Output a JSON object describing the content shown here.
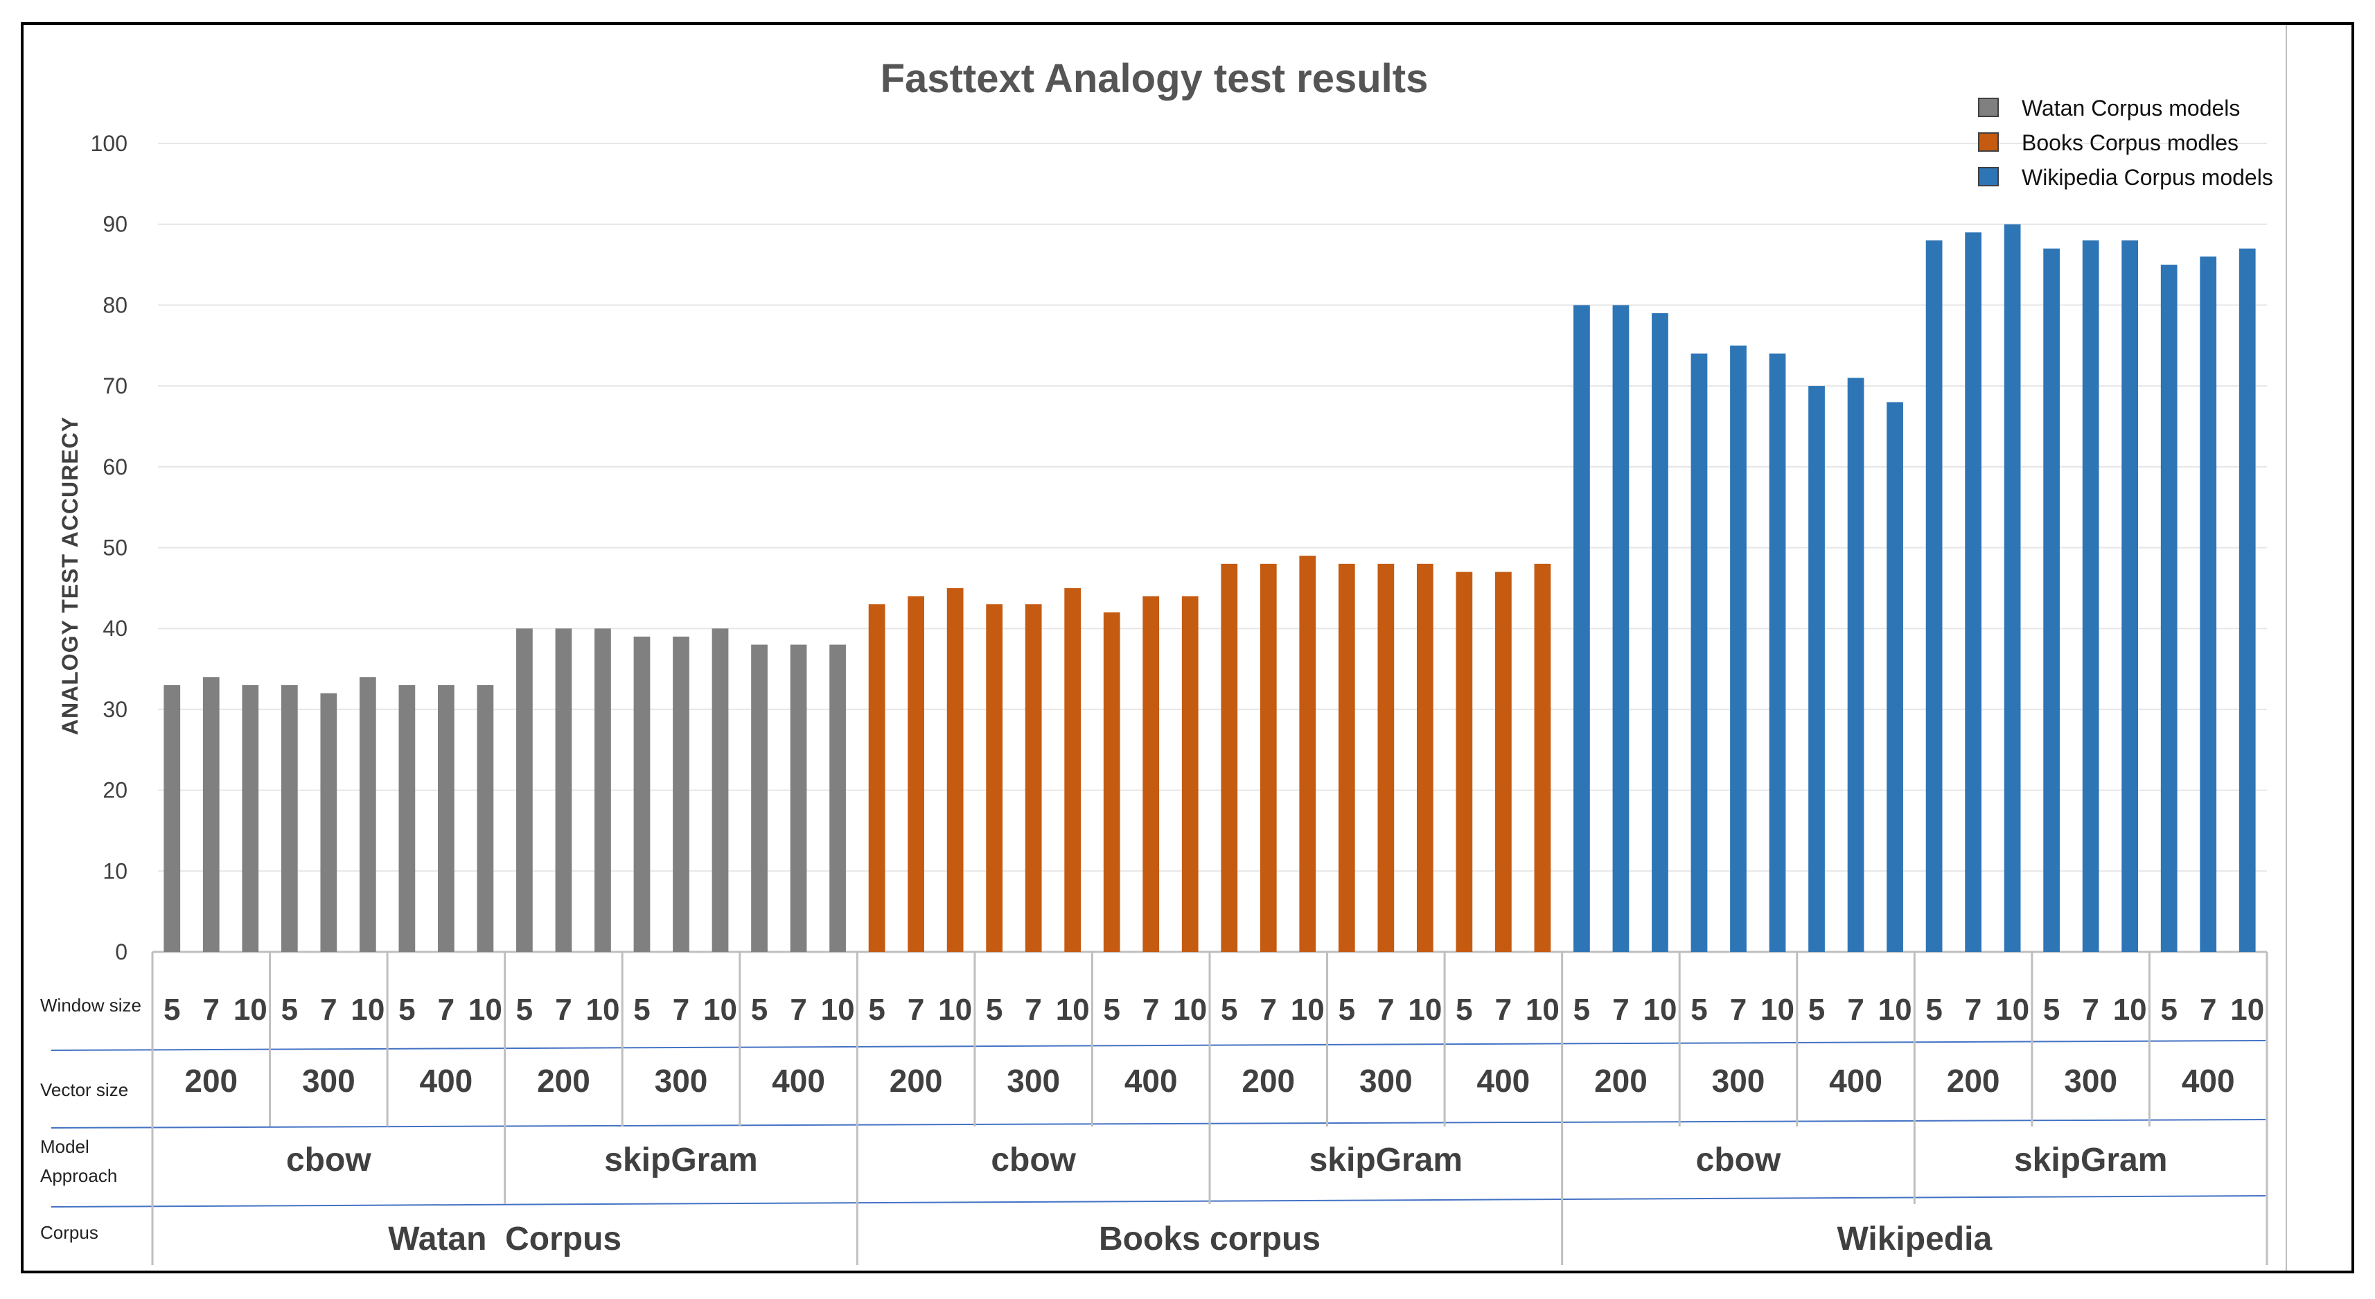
{
  "chart_data": {
    "type": "bar",
    "title": "Fasttext Analogy test results",
    "ylabel": "ANALOGY TEST ACCURECY",
    "ylim": [
      0,
      100
    ],
    "yticks": [
      "0",
      "10",
      "20",
      "30",
      "40",
      "50",
      "60",
      "70",
      "80",
      "90",
      "100"
    ],
    "grid": true,
    "legend_position": "top-right",
    "legend": [
      {
        "name": "Watan Corpus models",
        "color": "#808080"
      },
      {
        "name": "Books Corpus modles",
        "color": "#C55A11"
      },
      {
        "name": "Wikipedia Corpus models",
        "color": "#2E75B6"
      }
    ],
    "row_labels": {
      "window": "Window size",
      "vector": "Vector size",
      "approach_line1": "Model",
      "approach_line2": "Approach",
      "corpus": "Corpus"
    },
    "window_sizes": [
      "5",
      "7",
      "10"
    ],
    "vector_sizes": [
      "200",
      "300",
      "400"
    ],
    "approaches": [
      "cbow",
      "skipGram"
    ],
    "corpora": [
      {
        "name": "Watan  Corpus",
        "color": "#808080",
        "values": [
          33,
          34,
          33,
          33,
          32,
          34,
          33,
          33,
          33,
          40,
          40,
          40,
          39,
          39,
          40,
          38,
          38,
          38
        ]
      },
      {
        "name": "Books corpus",
        "color": "#C55A11",
        "values": [
          43,
          44,
          45,
          43,
          43,
          45,
          42,
          44,
          44,
          48,
          48,
          49,
          48,
          48,
          48,
          47,
          47,
          48
        ]
      },
      {
        "name": "Wikipedia",
        "color": "#2E75B6",
        "values": [
          80,
          80,
          79,
          74,
          75,
          74,
          70,
          71,
          68,
          88,
          89,
          90,
          87,
          88,
          88,
          85,
          86,
          87
        ]
      }
    ]
  }
}
